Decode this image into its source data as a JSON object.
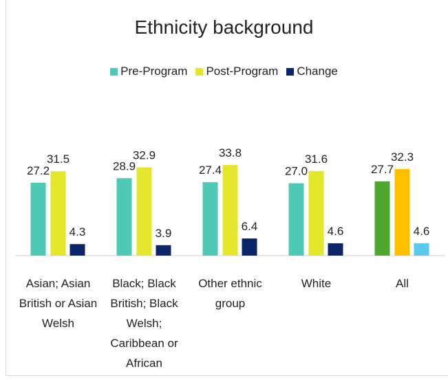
{
  "chart_data": {
    "type": "bar",
    "title": "Ethnicity background",
    "categories": [
      "Asian; Asian British or Asian Welsh",
      "Black; Black British; Black Welsh; Caribbean or African",
      "Other ethnic group",
      "White",
      "All"
    ],
    "series": [
      {
        "name": "Pre-Program",
        "color": "#4ec9b5",
        "colors": [
          "#4ec9b5",
          "#4ec9b5",
          "#4ec9b5",
          "#4ec9b5",
          "#4ea72e"
        ],
        "values": [
          27.2,
          28.9,
          27.4,
          27.0,
          27.7
        ],
        "value_labels": [
          "27.2",
          "28.9",
          "27.4",
          "27.0",
          "27.7"
        ]
      },
      {
        "name": "Post-Program",
        "color": "#e3e62a",
        "colors": [
          "#e3e62a",
          "#e3e62a",
          "#e3e62a",
          "#e3e62a",
          "#ffc000"
        ],
        "values": [
          31.5,
          32.9,
          33.8,
          31.6,
          32.3
        ]
      },
      {
        "name": "Change",
        "color": "#0c2468",
        "colors": [
          "#0c2468",
          "#0c2468",
          "#0c2468",
          "#0c2468",
          "#5bc8f0"
        ],
        "values": [
          4.3,
          3.9,
          6.4,
          4.6,
          4.6
        ]
      }
    ],
    "ylim": [
      0,
      40
    ],
    "legend": "top"
  }
}
